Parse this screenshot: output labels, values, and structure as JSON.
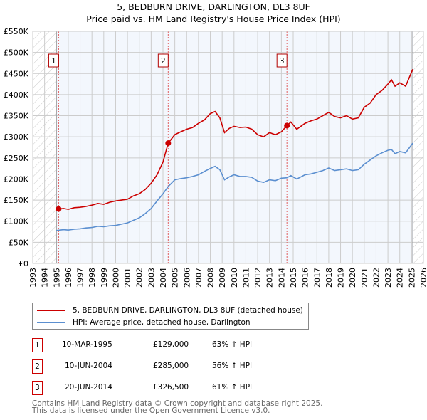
{
  "chart_data": {
    "type": "line",
    "title": "5, BEDBURN DRIVE, DARLINGTON, DL3 8UF",
    "subtitle": "Price paid vs. HM Land Registry's House Price Index (HPI)",
    "xlim": [
      1993,
      2026
    ],
    "ylim": [
      0,
      550000
    ],
    "x_ticks": [
      "1993",
      "1994",
      "1995",
      "1996",
      "1997",
      "1998",
      "1999",
      "2000",
      "2001",
      "2002",
      "2003",
      "2004",
      "2005",
      "2006",
      "2007",
      "2008",
      "2009",
      "2010",
      "2011",
      "2012",
      "2013",
      "2014",
      "2015",
      "2016",
      "2017",
      "2018",
      "2019",
      "2020",
      "2021",
      "2022",
      "2023",
      "2024",
      "2025",
      "2026"
    ],
    "y_ticks": [
      {
        "v": 0,
        "label": "£0"
      },
      {
        "v": 50000,
        "label": "£50K"
      },
      {
        "v": 100000,
        "label": "£100K"
      },
      {
        "v": 150000,
        "label": "£150K"
      },
      {
        "v": 200000,
        "label": "£200K"
      },
      {
        "v": 250000,
        "label": "£250K"
      },
      {
        "v": 300000,
        "label": "£300K"
      },
      {
        "v": 350000,
        "label": "£350K"
      },
      {
        "v": 400000,
        "label": "£400K"
      },
      {
        "v": 450000,
        "label": "£450K"
      },
      {
        "v": 500000,
        "label": "£500K"
      },
      {
        "v": 550000,
        "label": "£550K"
      }
    ],
    "grid": true,
    "data_range": [
      1995.0,
      2025.1
    ],
    "series": [
      {
        "name": "5, BEDBURN DRIVE, DARLINGTON, DL3 8UF (detached house)",
        "color": "#cc0000",
        "x": [
          1995.19,
          1995.6,
          1996,
          1996.5,
          1997,
          1997.5,
          1998,
          1998.5,
          1999,
          1999.5,
          2000,
          2000.5,
          2001,
          2001.5,
          2002,
          2002.5,
          2003,
          2003.5,
          2004,
          2004.44,
          2005,
          2005.5,
          2006,
          2006.5,
          2007,
          2007.5,
          2008,
          2008.4,
          2008.8,
          2009.2,
          2009.6,
          2010,
          2010.5,
          2011,
          2011.5,
          2012,
          2012.5,
          2013,
          2013.5,
          2014,
          2014.47,
          2014.8,
          2015.3,
          2016,
          2016.5,
          2017,
          2017.5,
          2018,
          2018.5,
          2019,
          2019.5,
          2020,
          2020.5,
          2021,
          2021.5,
          2022,
          2022.5,
          2023,
          2023.3,
          2023.6,
          2024,
          2024.5,
          2025.1
        ],
        "y": [
          129000,
          130000,
          128000,
          132000,
          133000,
          135000,
          138000,
          142000,
          140000,
          145000,
          148000,
          150000,
          152000,
          160000,
          165000,
          175000,
          190000,
          210000,
          240000,
          285000,
          305000,
          312000,
          318000,
          322000,
          332000,
          340000,
          355000,
          360000,
          345000,
          310000,
          320000,
          325000,
          322000,
          323000,
          318000,
          305000,
          300000,
          310000,
          305000,
          312000,
          326500,
          335000,
          318000,
          332000,
          338000,
          342000,
          350000,
          358000,
          348000,
          345000,
          350000,
          342000,
          345000,
          370000,
          380000,
          400000,
          410000,
          425000,
          435000,
          420000,
          428000,
          420000,
          460000
        ]
      },
      {
        "name": "HPI: Average price, detached house, Darlington",
        "color": "#5b8fd0",
        "x": [
          1995,
          1995.6,
          1996,
          1996.5,
          1997,
          1997.5,
          1998,
          1998.5,
          1999,
          1999.5,
          2000,
          2000.5,
          2001,
          2001.5,
          2002,
          2002.5,
          2003,
          2003.5,
          2004,
          2004.44,
          2005,
          2005.5,
          2006,
          2006.5,
          2007,
          2007.5,
          2008,
          2008.4,
          2008.8,
          2009.2,
          2009.6,
          2010,
          2010.5,
          2011,
          2011.5,
          2012,
          2012.5,
          2013,
          2013.5,
          2014,
          2014.47,
          2014.8,
          2015.3,
          2016,
          2016.5,
          2017,
          2017.5,
          2018,
          2018.5,
          2019,
          2019.5,
          2020,
          2020.5,
          2021,
          2021.5,
          2022,
          2022.5,
          2023,
          2023.3,
          2023.6,
          2024,
          2024.5,
          2025.1
        ],
        "y": [
          78000,
          80000,
          79000,
          81000,
          82000,
          84000,
          85000,
          88000,
          87000,
          89000,
          90000,
          93000,
          96000,
          102000,
          108000,
          118000,
          130000,
          148000,
          165000,
          182000,
          198000,
          201000,
          203000,
          206000,
          210000,
          218000,
          225000,
          230000,
          222000,
          198000,
          205000,
          210000,
          206000,
          206000,
          204000,
          195000,
          192000,
          198000,
          196000,
          202000,
          203000,
          208000,
          200000,
          210000,
          212000,
          216000,
          220000,
          226000,
          220000,
          222000,
          224000,
          220000,
          222000,
          235000,
          245000,
          255000,
          262000,
          268000,
          270000,
          260000,
          265000,
          262000,
          285000
        ]
      }
    ],
    "sales": [
      {
        "id": "1",
        "x": 1995.19,
        "y": 129000,
        "date": "10-MAR-1995",
        "price": "£129,000",
        "hpi": "63% ↑ HPI"
      },
      {
        "id": "2",
        "x": 2004.44,
        "y": 285000,
        "date": "10-JUN-2004",
        "price": "£285,000",
        "hpi": "56% ↑ HPI"
      },
      {
        "id": "3",
        "x": 2014.47,
        "y": 326500,
        "date": "20-JUN-2014",
        "price": "£326,500",
        "hpi": "61% ↑ HPI"
      }
    ],
    "footer": [
      "Contains HM Land Registry data © Crown copyright and database right 2025.",
      "This data is licensed under the Open Government Licence v3.0."
    ]
  }
}
